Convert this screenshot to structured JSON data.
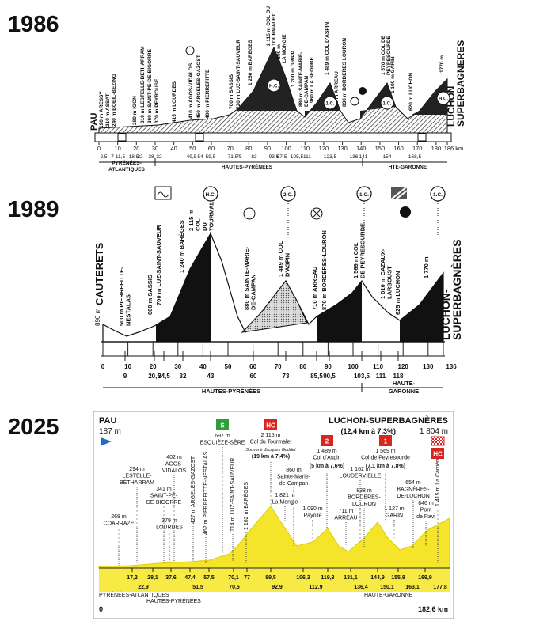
{
  "profiles": [
    {
      "year": "1986",
      "start": "PAU",
      "finish": [
        "LUCHON",
        "SUPERBAGNERES"
      ],
      "labels": [
        [
          "190 m ARESSY"
        ],
        [
          "210 m ASSAT"
        ],
        [
          "240 m BOEIL-BEZING"
        ],
        [
          "280 m IGON"
        ],
        [
          "310 m LESTELLE-BETHARRAM"
        ],
        [
          "360 m SAINT-PE-DE-BIGORRE"
        ],
        [
          "370 m PEYROUSE"
        ],
        [
          "415 m LOURDES"
        ],
        [
          "410 m AGOS-VIDALOS"
        ],
        [
          "450 m ARGELES-GAZOST"
        ],
        [
          "480 m PIERREFITTE"
        ],
        [
          "700 m SASSIS"
        ],
        [
          "720 m LUZ-SAINT-SAUVEUR"
        ],
        [
          "1 250 m BAREGES"
        ],
        [
          "2 115 m COL DU",
          "TOURMALET"
        ],
        [
          "1 800 m",
          "LA MONGIE"
        ],
        [
          "1 200 m GRIPP"
        ],
        [
          "880 m SAINTE-MARIE-",
          "DE-CAMPAN"
        ],
        [
          "960 m LA SEOUBE"
        ],
        [
          "1 489 m COL D'ASPIN"
        ],
        [
          "705 m ARREAU"
        ],
        [
          "830 m BORDERES LOURON"
        ],
        [
          "1 570 m COL DE",
          "PEYRESOURDE"
        ],
        [
          "1 100 m GARIN"
        ],
        [
          "620 m LUCHON"
        ],
        [
          "1770 m"
        ]
      ],
      "badges": [
        "H.C.",
        "1.C.",
        "1.C.",
        "H.C."
      ],
      "km": [
        "0",
        "10",
        "20",
        "30",
        "40",
        "50",
        "60",
        "70",
        "80",
        "90",
        "100",
        "110",
        "120",
        "130",
        "140",
        "150",
        "160",
        "170",
        "180",
        "186 km"
      ],
      "km_detail": [
        "2,5",
        "7",
        "11,5",
        "18,5",
        "22",
        "28",
        "32",
        "49,5",
        "54",
        "59,5",
        "71,5",
        "75",
        "83",
        "93,5",
        "97,5",
        "105,5",
        "111",
        "123,5",
        "136",
        "141",
        "154",
        "168,5"
      ],
      "regions": [
        [
          "PYRÉNÉES-",
          "ATLANTIQUES"
        ],
        [
          "HAUTES-PYRÉNÉES"
        ],
        [
          "HTE-GARONNE"
        ]
      ]
    },
    {
      "year": "1989",
      "start": "CAUTERETS",
      "start_altitude": "890 m",
      "finish": [
        "LUCHON-",
        "SUPERBAGNÈRES"
      ],
      "labels": [
        [
          "500 m PIERREFITTE-",
          "NESTALAS"
        ],
        [
          "660 m SASSIS"
        ],
        [
          "700 m LUZ-SAINT-SAUVEUR"
        ],
        [
          "1 240 m BARÈGES"
        ],
        [
          "2 115 m",
          "COL",
          "DU",
          "TOURMALET"
        ],
        [
          "880 m SAINTE-MARIE-",
          "DE-CAMPAN"
        ],
        [
          "1 489 m COL",
          "D'ASPIN"
        ],
        [
          "710 m ARREAU"
        ],
        [
          "870 m BORDÈRES-LOURON"
        ],
        [
          "1 569 m COL",
          "DE PEYRESOURDE"
        ],
        [
          "1 010 m CAZAUX-",
          "LARBOUST"
        ],
        [
          "625 m LUCHON"
        ],
        [
          "1 770 m"
        ]
      ],
      "badges": [
        "H.C.",
        "2.C.",
        "1.C.",
        "1.C."
      ],
      "km": [
        "0",
        "10",
        "20",
        "30",
        "40",
        "50",
        "60",
        "70",
        "80",
        "90",
        "100",
        "110",
        "120",
        "130",
        "136"
      ],
      "km_detail": [
        "9",
        "20,5",
        "24,5",
        "32",
        "43",
        "60",
        "73",
        "85,5",
        "90,5",
        "103,5",
        "111",
        "118"
      ],
      "regions": [
        [
          "HAUTES-PYRÉNÉES"
        ],
        [
          "HAUTE-",
          "GARONNE"
        ]
      ]
    },
    {
      "year": "2025",
      "start": "PAU",
      "start_altitude": "187 m",
      "finish": "LUCHON-SUPERBAGNÈRES",
      "finish_climb": "(12,4 km à 7,3%)",
      "finish_altitude": "1 804 m",
      "labels": [
        [
          "268 m",
          "COARRAZE"
        ],
        [
          "294 m",
          "LESTELLE-",
          "BÉTHARRAM"
        ],
        [
          "341 m",
          "SAINT-PÉ-",
          "DE-BIGORRE"
        ],
        [
          "379 m",
          "LOURDES"
        ],
        [
          "402 m",
          "AGOS-",
          "VIDALOS"
        ],
        [
          "697 m",
          "ESQUIÈZE-SÈRE"
        ],
        [
          "2 115 m",
          "Col du Tourmalet"
        ],
        [
          "1 821 m",
          "La Mongie"
        ],
        [
          "860 m",
          "Sainte-Marie-",
          "de-Campan"
        ],
        [
          "1 090 m",
          "Payolle"
        ],
        [
          "1 489 m",
          "Col d'Aspin"
        ],
        [
          "711 m",
          "ARREAU"
        ],
        [
          "838 m",
          "BORDÈRES-",
          "LOURON"
        ],
        [
          "1 162 m",
          "LOUDERVIELLE"
        ],
        [
          "1 569 m",
          "Col de Peyresourde"
        ],
        [
          "1 127 m",
          "GARIN"
        ],
        [
          "654 m",
          "BAGNÈRES-",
          "DE-LUCHON"
        ],
        [
          "846 m",
          "Pont",
          "de Ravi"
        ]
      ],
      "vertical_labels": [
        "427 m ARGELÈS-GAZOST",
        "462 m PIERREFITTE-NESTALAS",
        "714 m LUZ-SAINT-SAUVEUR",
        "1 162 m BARÈGES",
        "1 415 m La Carrière"
      ],
      "notes": [
        "Souvenir Jacques Goddet",
        "(19 km à 7,4%)",
        "(5 km à 7,6%)",
        "(7,1 km à 7,8%)"
      ],
      "badges": [
        "S",
        "HC",
        "2",
        "1",
        "HC"
      ],
      "km_top": [
        "17,2",
        "28,1",
        "37,6",
        "47,4",
        "57,5",
        "70,1",
        "77",
        "89,5",
        "106,3",
        "119,3",
        "131,1",
        "144,9",
        "155,8",
        "169,9"
      ],
      "km_bottom": [
        "22,9",
        "51,5",
        "70,5",
        "92,9",
        "112,9",
        "136,4",
        "150,1",
        "163,1",
        "177,8"
      ],
      "regions": [
        "PYRÉNÉES-ATLANTIQUES",
        "HAUTES-PYRÉNÉES",
        "HAUTE-GARONNE"
      ],
      "distance_start": "0",
      "distance_end": "182,6 km"
    }
  ]
}
